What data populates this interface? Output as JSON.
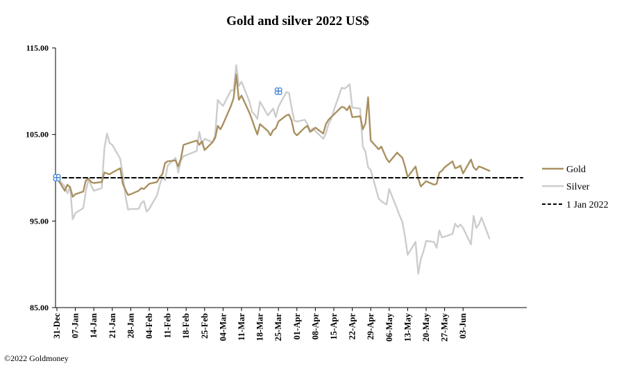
{
  "chart_data": {
    "type": "line",
    "title": "Gold and silver 2022  US$",
    "xlabel": "",
    "ylabel": "",
    "ylim": [
      85,
      115
    ],
    "yticks": [
      "85.00",
      "95.00",
      "105.00",
      "115.00"
    ],
    "ytick_values": [
      85,
      95,
      105,
      115
    ],
    "x_range": [
      "2021-12-31",
      "2022-06-09"
    ],
    "xticks": [
      "31-Dec",
      "07-Jan",
      "14-Jan",
      "21-Jan",
      "28-Jan",
      "04-Feb",
      "11-Feb",
      "18-Feb",
      "25-Feb",
      "04-Mar",
      "11-Mar",
      "18-Mar",
      "25-Mar",
      "01-Apr",
      "08-Apr",
      "15-Apr",
      "22-Apr",
      "29-Apr",
      "06-May",
      "13-May",
      "20-May",
      "27-May",
      "03-Jun"
    ],
    "xtick_dates": [
      "2021-12-31",
      "2022-01-07",
      "2022-01-14",
      "2022-01-21",
      "2022-01-28",
      "2022-02-04",
      "2022-02-11",
      "2022-02-18",
      "2022-02-25",
      "2022-03-04",
      "2022-03-11",
      "2022-03-18",
      "2022-03-25",
      "2022-04-01",
      "2022-04-08",
      "2022-04-15",
      "2022-04-22",
      "2022-04-29",
      "2022-05-06",
      "2022-05-13",
      "2022-05-20",
      "2022-05-27",
      "2022-06-03"
    ],
    "grid": false,
    "legend_placement": "right",
    "series": [
      {
        "name": "Gold",
        "color": "#a89060",
        "points": [
          [
            "2021-12-31",
            100.0
          ],
          [
            "2022-01-03",
            98.5
          ],
          [
            "2022-01-04",
            99.2
          ],
          [
            "2022-01-05",
            98.9
          ],
          [
            "2022-01-06",
            97.8
          ],
          [
            "2022-01-07",
            98.1
          ],
          [
            "2022-01-10",
            98.4
          ],
          [
            "2022-01-11",
            99.7
          ],
          [
            "2022-01-12",
            99.9
          ],
          [
            "2022-01-13",
            99.5
          ],
          [
            "2022-01-14",
            99.4
          ],
          [
            "2022-01-17",
            99.5
          ],
          [
            "2022-01-18",
            100.6
          ],
          [
            "2022-01-19",
            100.5
          ],
          [
            "2022-01-20",
            100.4
          ],
          [
            "2022-01-21",
            100.6
          ],
          [
            "2022-01-24",
            101.1
          ],
          [
            "2022-01-25",
            99.3
          ],
          [
            "2022-01-26",
            98.6
          ],
          [
            "2022-01-27",
            98.0
          ],
          [
            "2022-01-28",
            98.1
          ],
          [
            "2022-01-31",
            98.5
          ],
          [
            "2022-02-01",
            98.8
          ],
          [
            "2022-02-02",
            98.7
          ],
          [
            "2022-02-03",
            99.0
          ],
          [
            "2022-02-04",
            99.3
          ],
          [
            "2022-02-07",
            99.5
          ],
          [
            "2022-02-08",
            100.1
          ],
          [
            "2022-02-09",
            100.4
          ],
          [
            "2022-02-10",
            101.7
          ],
          [
            "2022-02-11",
            101.9
          ],
          [
            "2022-02-14",
            102.0
          ],
          [
            "2022-02-15",
            101.3
          ],
          [
            "2022-02-16",
            102.2
          ],
          [
            "2022-02-17",
            103.8
          ],
          [
            "2022-02-18",
            103.9
          ],
          [
            "2022-02-22",
            104.3
          ],
          [
            "2022-02-23",
            103.8
          ],
          [
            "2022-02-24",
            104.2
          ],
          [
            "2022-02-25",
            103.2
          ],
          [
            "2022-02-28",
            104.1
          ],
          [
            "2022-03-01",
            104.6
          ],
          [
            "2022-03-02",
            106.0
          ],
          [
            "2022-03-03",
            105.6
          ],
          [
            "2022-03-04",
            106.2
          ],
          [
            "2022-03-07",
            108.3
          ],
          [
            "2022-03-08",
            109.2
          ],
          [
            "2022-03-09",
            111.9
          ],
          [
            "2022-03-10",
            109.0
          ],
          [
            "2022-03-11",
            109.5
          ],
          [
            "2022-03-14",
            107.5
          ],
          [
            "2022-03-15",
            106.7
          ],
          [
            "2022-03-16",
            105.8
          ],
          [
            "2022-03-17",
            105.0
          ],
          [
            "2022-03-18",
            106.2
          ],
          [
            "2022-03-21",
            105.4
          ],
          [
            "2022-03-22",
            104.9
          ],
          [
            "2022-03-23",
            105.5
          ],
          [
            "2022-03-24",
            105.7
          ],
          [
            "2022-03-25",
            106.5
          ],
          [
            "2022-03-28",
            107.2
          ],
          [
            "2022-03-29",
            107.3
          ],
          [
            "2022-03-30",
            106.6
          ],
          [
            "2022-03-31",
            105.2
          ],
          [
            "2022-04-01",
            104.9
          ],
          [
            "2022-04-04",
            105.8
          ],
          [
            "2022-04-05",
            106.0
          ],
          [
            "2022-04-06",
            105.3
          ],
          [
            "2022-04-07",
            105.5
          ],
          [
            "2022-04-08",
            105.8
          ],
          [
            "2022-04-11",
            105.1
          ],
          [
            "2022-04-12",
            106.2
          ],
          [
            "2022-04-13",
            106.7
          ],
          [
            "2022-04-14",
            107.0
          ],
          [
            "2022-04-15",
            107.3
          ],
          [
            "2022-04-18",
            108.2
          ],
          [
            "2022-04-19",
            108.1
          ],
          [
            "2022-04-20",
            107.8
          ],
          [
            "2022-04-21",
            108.3
          ],
          [
            "2022-04-22",
            107.0
          ],
          [
            "2022-04-25",
            107.1
          ],
          [
            "2022-04-26",
            105.6
          ],
          [
            "2022-04-27",
            106.3
          ],
          [
            "2022-04-28",
            109.3
          ],
          [
            "2022-04-29",
            104.3
          ],
          [
            "2022-05-02",
            103.3
          ],
          [
            "2022-05-03",
            103.6
          ],
          [
            "2022-05-04",
            102.9
          ],
          [
            "2022-05-05",
            102.2
          ],
          [
            "2022-05-06",
            101.8
          ],
          [
            "2022-05-09",
            102.9
          ],
          [
            "2022-05-10",
            102.6
          ],
          [
            "2022-05-11",
            102.3
          ],
          [
            "2022-05-12",
            101.3
          ],
          [
            "2022-05-13",
            100.1
          ],
          [
            "2022-05-16",
            101.3
          ],
          [
            "2022-05-17",
            99.9
          ],
          [
            "2022-05-18",
            99.0
          ],
          [
            "2022-05-19",
            99.3
          ],
          [
            "2022-05-20",
            99.6
          ],
          [
            "2022-05-23",
            99.2
          ],
          [
            "2022-05-24",
            99.3
          ],
          [
            "2022-05-25",
            100.6
          ],
          [
            "2022-05-26",
            100.8
          ],
          [
            "2022-05-27",
            101.2
          ],
          [
            "2022-05-30",
            101.9
          ],
          [
            "2022-05-31",
            101.1
          ],
          [
            "2022-06-01",
            101.2
          ],
          [
            "2022-06-02",
            101.4
          ],
          [
            "2022-06-03",
            100.5
          ],
          [
            "2022-06-06",
            102.1
          ],
          [
            "2022-06-07",
            101.2
          ],
          [
            "2022-06-08",
            100.9
          ],
          [
            "2022-06-09",
            101.3
          ],
          [
            "2022-06-10",
            101.2
          ],
          [
            "2022-06-13",
            100.8
          ]
        ]
      },
      {
        "name": "Silver",
        "color": "#cccccc",
        "points": [
          [
            "2021-12-31",
            100.0
          ],
          [
            "2022-01-03",
            99.0
          ],
          [
            "2022-01-04",
            98.2
          ],
          [
            "2022-01-05",
            99.0
          ],
          [
            "2022-01-06",
            95.2
          ],
          [
            "2022-01-07",
            95.9
          ],
          [
            "2022-01-10",
            96.5
          ],
          [
            "2022-01-11",
            98.5
          ],
          [
            "2022-01-12",
            99.8
          ],
          [
            "2022-01-13",
            99.1
          ],
          [
            "2022-01-14",
            98.5
          ],
          [
            "2022-01-17",
            98.8
          ],
          [
            "2022-01-18",
            103.4
          ],
          [
            "2022-01-19",
            105.1
          ],
          [
            "2022-01-20",
            104.0
          ],
          [
            "2022-01-21",
            103.8
          ],
          [
            "2022-01-24",
            102.2
          ],
          [
            "2022-01-25",
            100.3
          ],
          [
            "2022-01-26",
            97.9
          ],
          [
            "2022-01-27",
            96.3
          ],
          [
            "2022-01-28",
            96.4
          ],
          [
            "2022-01-31",
            96.4
          ],
          [
            "2022-02-01",
            97.1
          ],
          [
            "2022-02-02",
            97.3
          ],
          [
            "2022-02-03",
            96.1
          ],
          [
            "2022-02-04",
            96.4
          ],
          [
            "2022-02-07",
            98.0
          ],
          [
            "2022-02-08",
            99.2
          ],
          [
            "2022-02-09",
            100.1
          ],
          [
            "2022-02-10",
            99.7
          ],
          [
            "2022-02-11",
            101.4
          ],
          [
            "2022-02-14",
            102.3
          ],
          [
            "2022-02-15",
            100.6
          ],
          [
            "2022-02-16",
            102.0
          ],
          [
            "2022-02-17",
            102.5
          ],
          [
            "2022-02-18",
            102.6
          ],
          [
            "2022-02-22",
            103.1
          ],
          [
            "2022-02-23",
            105.3
          ],
          [
            "2022-02-24",
            103.9
          ],
          [
            "2022-02-25",
            104.5
          ],
          [
            "2022-02-28",
            104.1
          ],
          [
            "2022-03-01",
            104.9
          ],
          [
            "2022-03-02",
            109.0
          ],
          [
            "2022-03-03",
            108.6
          ],
          [
            "2022-03-04",
            108.3
          ],
          [
            "2022-03-07",
            110.1
          ],
          [
            "2022-03-08",
            110.1
          ],
          [
            "2022-03-09",
            113.0
          ],
          [
            "2022-03-10",
            110.6
          ],
          [
            "2022-03-11",
            111.1
          ],
          [
            "2022-03-14",
            108.8
          ],
          [
            "2022-03-15",
            107.6
          ],
          [
            "2022-03-16",
            107.3
          ],
          [
            "2022-03-17",
            106.8
          ],
          [
            "2022-03-18",
            108.8
          ],
          [
            "2022-03-21",
            107.2
          ],
          [
            "2022-03-22",
            107.6
          ],
          [
            "2022-03-23",
            108.0
          ],
          [
            "2022-03-24",
            107.0
          ],
          [
            "2022-03-25",
            108.2
          ],
          [
            "2022-03-28",
            109.9
          ],
          [
            "2022-03-29",
            109.8
          ],
          [
            "2022-03-30",
            108.1
          ],
          [
            "2022-03-31",
            106.6
          ],
          [
            "2022-04-01",
            106.5
          ],
          [
            "2022-04-04",
            106.7
          ],
          [
            "2022-04-05",
            106.2
          ],
          [
            "2022-04-06",
            105.4
          ],
          [
            "2022-04-07",
            105.7
          ],
          [
            "2022-04-08",
            105.4
          ],
          [
            "2022-04-11",
            104.5
          ],
          [
            "2022-04-12",
            105.1
          ],
          [
            "2022-04-13",
            106.2
          ],
          [
            "2022-04-14",
            106.8
          ],
          [
            "2022-04-15",
            107.8
          ],
          [
            "2022-04-18",
            110.4
          ],
          [
            "2022-04-19",
            110.3
          ],
          [
            "2022-04-20",
            110.5
          ],
          [
            "2022-04-21",
            110.8
          ],
          [
            "2022-04-22",
            108.1
          ],
          [
            "2022-04-25",
            108.0
          ],
          [
            "2022-04-26",
            103.6
          ],
          [
            "2022-04-27",
            103.0
          ],
          [
            "2022-04-28",
            101.2
          ],
          [
            "2022-04-29",
            100.9
          ],
          [
            "2022-05-02",
            97.6
          ],
          [
            "2022-05-03",
            97.3
          ],
          [
            "2022-05-04",
            97.1
          ],
          [
            "2022-05-05",
            96.9
          ],
          [
            "2022-05-06",
            98.7
          ],
          [
            "2022-05-09",
            96.4
          ],
          [
            "2022-05-10",
            95.6
          ],
          [
            "2022-05-11",
            94.9
          ],
          [
            "2022-05-12",
            93.2
          ],
          [
            "2022-05-13",
            91.1
          ],
          [
            "2022-05-16",
            92.6
          ],
          [
            "2022-05-17",
            88.9
          ],
          [
            "2022-05-18",
            90.6
          ],
          [
            "2022-05-19",
            91.5
          ],
          [
            "2022-05-20",
            92.7
          ],
          [
            "2022-05-23",
            92.6
          ],
          [
            "2022-05-24",
            91.9
          ],
          [
            "2022-05-25",
            93.9
          ],
          [
            "2022-05-26",
            93.1
          ],
          [
            "2022-05-27",
            93.2
          ],
          [
            "2022-05-30",
            93.5
          ],
          [
            "2022-05-31",
            94.7
          ],
          [
            "2022-06-01",
            94.3
          ],
          [
            "2022-06-02",
            94.6
          ],
          [
            "2022-06-03",
            94.2
          ],
          [
            "2022-06-06",
            92.3
          ],
          [
            "2022-06-07",
            95.6
          ],
          [
            "2022-06-08",
            94.2
          ],
          [
            "2022-06-09",
            94.6
          ],
          [
            "2022-06-10",
            95.4
          ],
          [
            "2022-06-13",
            93.0
          ]
        ]
      },
      {
        "name": "1 Jan 2022",
        "color": "#000000",
        "dashed": true,
        "points": [
          [
            "2021-12-31",
            100.0
          ],
          [
            "2022-06-13",
            100.0
          ]
        ]
      }
    ],
    "markers": [
      {
        "date": "2021-12-31",
        "value": 100.0,
        "color": "#3a7fd5"
      },
      {
        "date": "2022-03-25",
        "value": 110.0,
        "color": "#3a7fd5"
      }
    ]
  },
  "footer": "©2022 Goldmoney"
}
